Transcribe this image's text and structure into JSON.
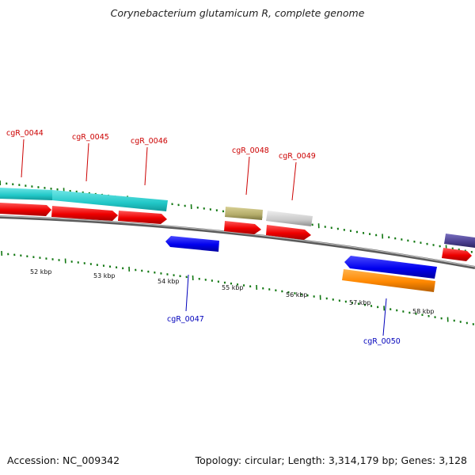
{
  "title": "Corynebacterium glutamicum R, complete genome",
  "footer": {
    "accession": "Accession: NC_009342",
    "topology": "Topology: circular; Length: 3,314,179 bp; Genes: 3,128"
  },
  "scale_labels": [
    "52 kbp",
    "53 kbp",
    "54 kbp",
    "55 kbp",
    "56 kbp",
    "57 kbp",
    "58 kbp"
  ],
  "gene_labels": [
    {
      "text": "cgR_0044",
      "strand": "forward"
    },
    {
      "text": "cgR_0045",
      "strand": "forward"
    },
    {
      "text": "cgR_0046",
      "strand": "forward"
    },
    {
      "text": "cgR_0048",
      "strand": "forward"
    },
    {
      "text": "cgR_0049",
      "strand": "forward"
    },
    {
      "text": "cgR_0047",
      "strand": "reverse"
    },
    {
      "text": "cgR_0050",
      "strand": "reverse"
    }
  ],
  "colors": {
    "forward_label": "#cc0000",
    "reverse_label": "#0000bb",
    "backbone": "#777777",
    "cds_red": "#ee0000",
    "cyan": "#22cccc",
    "olive": "#b8b070",
    "grey": "#cccccc",
    "blue": "#0000ee",
    "orange": "#ff8800",
    "indigo": "#4a3f8f",
    "tick": "#117711"
  }
}
